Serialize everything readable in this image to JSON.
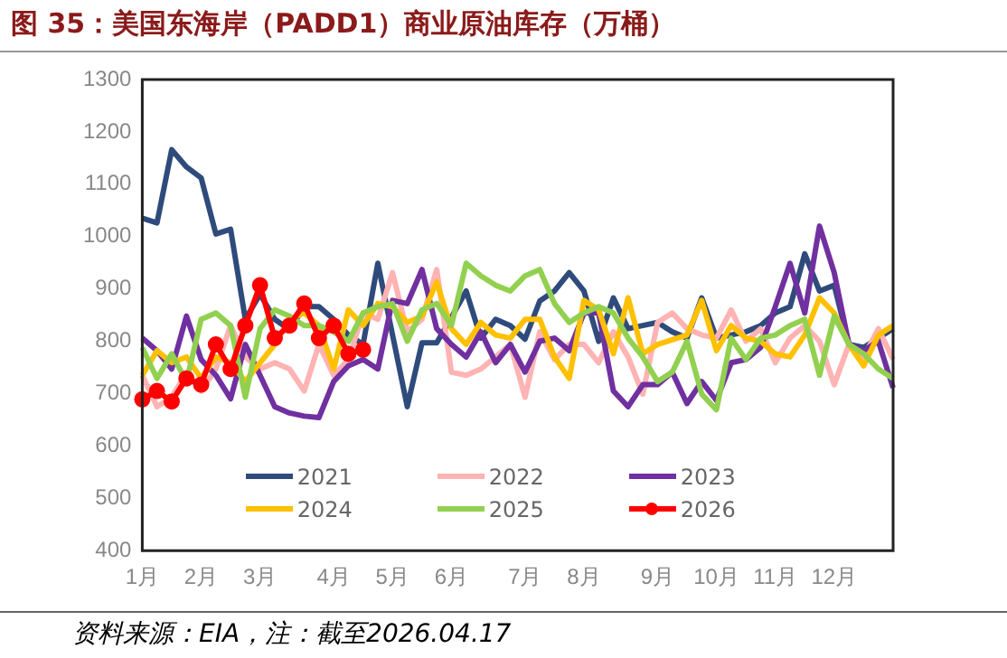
{
  "chart_data": {
    "type": "line",
    "title": "图 35：美国东海岸（PADD1）商业原油库存（万桶）",
    "categories": [
      "1月",
      null,
      null,
      null,
      "2月",
      null,
      null,
      null,
      "3月",
      null,
      null,
      null,
      null,
      "4月",
      null,
      null,
      null,
      "5月",
      null,
      null,
      null,
      "6月",
      null,
      null,
      null,
      null,
      "7月",
      null,
      null,
      null,
      "8月",
      null,
      null,
      null,
      null,
      "9月",
      null,
      null,
      null,
      "10月",
      null,
      null,
      null,
      "11月",
      null,
      null,
      null,
      "12月",
      null,
      null,
      null,
      null
    ],
    "ylim": [
      400,
      1300
    ],
    "yticks": [
      400,
      500,
      600,
      700,
      800,
      900,
      1000,
      1100,
      1200,
      1300
    ],
    "grid": false,
    "legend": "bottom",
    "marker": "none",
    "line_style": "solid",
    "series": [
      {
        "name": "2021",
        "color": "#2f4b7c",
        "values": [
          1035,
          1026,
          1166,
          1133,
          1112,
          1005,
          1014,
          842,
          890,
          842,
          822,
          866,
          866,
          842,
          812,
          794,
          949,
          812,
          675,
          797,
          797,
          846,
          896,
          806,
          842,
          830,
          804,
          877,
          896,
          931,
          896,
          800,
          883,
          824,
          830,
          836,
          818,
          806,
          883,
          806,
          812,
          818,
          830,
          854,
          866,
          967,
          896,
          907,
          794,
          788,
          806,
          824
        ]
      },
      {
        "name": "2022",
        "color": "#ffb3b3",
        "values": [
          735,
          675,
          693,
          740,
          705,
          747,
          830,
          770,
          747,
          759,
          747,
          705,
          794,
          735,
          765,
          854,
          842,
          931,
          818,
          842,
          937,
          741,
          735,
          747,
          770,
          794,
          693,
          818,
          765,
          794,
          794,
          759,
          818,
          770,
          699,
          836,
          854,
          824,
          812,
          806,
          860,
          800,
          824,
          759,
          806,
          830,
          800,
          717,
          794,
          770,
          824,
          765
        ]
      },
      {
        "name": "2023",
        "color": "#7030a0",
        "values": [
          806,
          782,
          747,
          848,
          765,
          735,
          690,
          794,
          735,
          675,
          663,
          657,
          654,
          723,
          753,
          765,
          747,
          878,
          872,
          937,
          824,
          794,
          770,
          818,
          759,
          794,
          741,
          800,
          806,
          782,
          854,
          854,
          705,
          675,
          717,
          717,
          741,
          681,
          723,
          687,
          759,
          765,
          788,
          866,
          949,
          854,
          1020,
          931,
          794,
          782,
          800,
          711
        ]
      },
      {
        "name": "2024",
        "color": "#ffc000",
        "values": [
          735,
          782,
          759,
          770,
          729,
          770,
          759,
          723,
          759,
          794,
          842,
          854,
          830,
          747,
          860,
          830,
          872,
          866,
          836,
          848,
          913,
          824,
          794,
          836,
          812,
          806,
          842,
          842,
          770,
          729,
          878,
          860,
          776,
          883,
          776,
          794,
          803,
          812,
          878,
          782,
          830,
          806,
          800,
          776,
          770,
          812,
          883,
          854,
          794,
          753,
          812,
          830
        ]
      },
      {
        "name": "2025",
        "color": "#92d050",
        "values": [
          788,
          729,
          776,
          723,
          842,
          854,
          830,
          693,
          824,
          860,
          848,
          830,
          830,
          818,
          800,
          854,
          866,
          872,
          800,
          860,
          872,
          830,
          949,
          925,
          907,
          896,
          925,
          937,
          872,
          836,
          854,
          866,
          854,
          806,
          770,
          723,
          741,
          800,
          699,
          669,
          806,
          765,
          806,
          812,
          830,
          842,
          735,
          848,
          794,
          776,
          747,
          729
        ]
      },
      {
        "name": "2026",
        "color": "#ff0000",
        "marker": "circle",
        "values": [
          689,
          705,
          685,
          729,
          717,
          794,
          747,
          830,
          907,
          806,
          830,
          872,
          806,
          830,
          776,
          784,
          null,
          null,
          null,
          null,
          null,
          null,
          null,
          null,
          null,
          null,
          null,
          null,
          null,
          null,
          null,
          null,
          null,
          null,
          null,
          null,
          null,
          null,
          null,
          null,
          null,
          null,
          null,
          null,
          null,
          null,
          null,
          null,
          null,
          null,
          null,
          null
        ]
      }
    ],
    "annotations": [
      "资料来源：EIA，注：截至2026.04.17"
    ]
  }
}
